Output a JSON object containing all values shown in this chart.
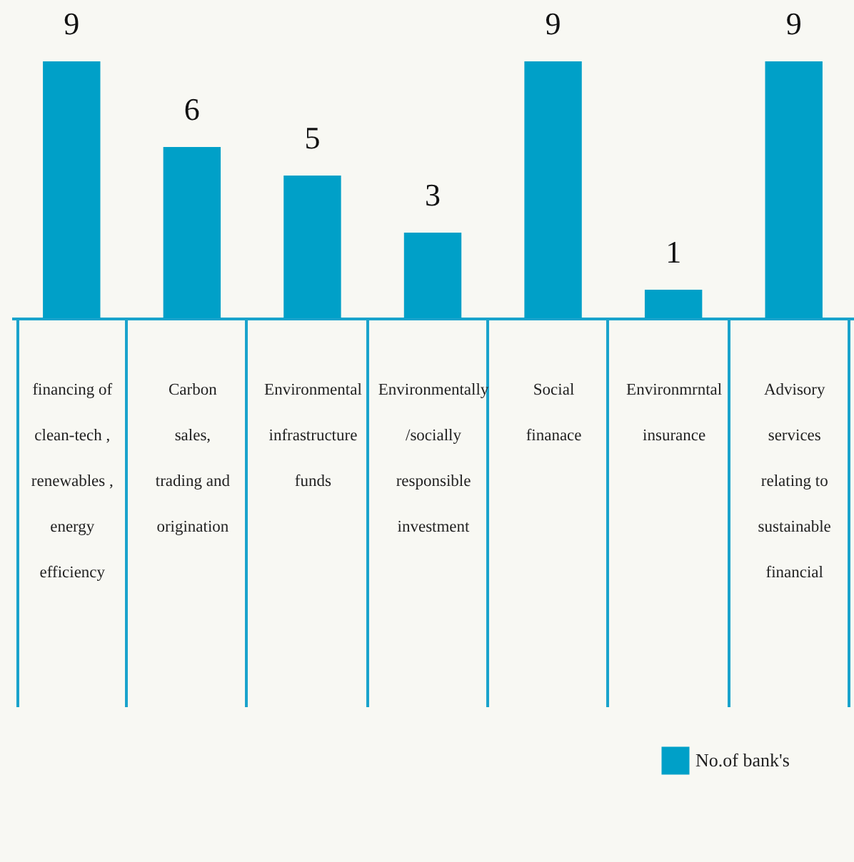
{
  "chart_data": {
    "type": "bar",
    "categories": [
      "financing of clean-tech , renewables , energy efficiency",
      "Carbon sales, trading and origination",
      "Environmental infrastructure funds",
      "Environmentally /socially responsible investment",
      "Social finanace",
      "Environmrntal insurance",
      "Advisory services relating to sustainable financial"
    ],
    "series": [
      {
        "name": "No.of bank's",
        "color": "#00a0c8",
        "values": [
          9,
          6,
          5,
          3,
          9,
          1,
          9
        ]
      }
    ],
    "data_labels": true,
    "legend": "bottom right"
  }
}
